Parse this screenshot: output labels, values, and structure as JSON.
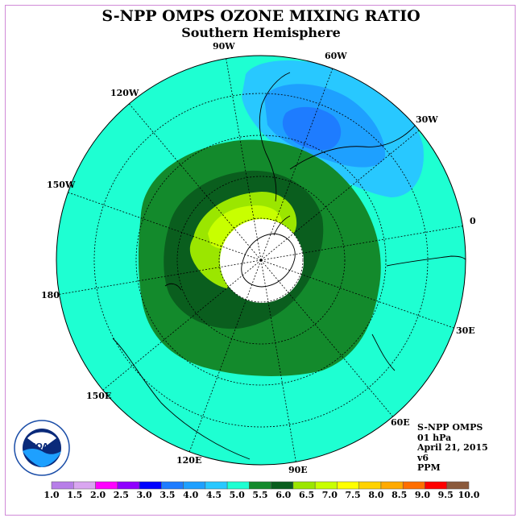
{
  "title": "S-NPP OMPS OZONE MIXING RATIO",
  "subtitle": "Southern Hemisphere",
  "longitude_labels": [
    "90W",
    "60W",
    "30W",
    "0",
    "30E",
    "60E",
    "90E",
    "120E",
    "150E",
    "180",
    "150W",
    "120W"
  ],
  "info": {
    "instrument": "S-NPP OMPS",
    "level": "01 hPa",
    "date": "April 21, 2015",
    "version": "v6",
    "units": "PPM"
  },
  "logo_text": "NOAA",
  "colorbar": {
    "labels": [
      "1.0",
      "1.5",
      "2.0",
      "2.5",
      "3.0",
      "3.5",
      "4.0",
      "4.5",
      "5.0",
      "5.5",
      "6.0",
      "6.5",
      "7.0",
      "7.5",
      "8.0",
      "8.5",
      "9.0",
      "9.5",
      "10.0"
    ],
    "colors": [
      "#b77ee8",
      "#d9a6f0",
      "#ff00ff",
      "#8f00ff",
      "#0000ff",
      "#1e7cff",
      "#1ea0ff",
      "#28c8ff",
      "#1effd2",
      "#138a2c",
      "#0a5e1e",
      "#9be600",
      "#c8ff00",
      "#ffff00",
      "#ffd200",
      "#ffaa00",
      "#ff6e00",
      "#ff0000",
      "#8b5a3c"
    ]
  },
  "colors": {
    "background_field": "#1effd2",
    "mid_green": "#138a2c",
    "dark_green": "#0a5e1e",
    "light_green": "#9be600",
    "yellow_green": "#c8ff00",
    "blue_light": "#28c8ff",
    "blue_mid": "#1ea0ff",
    "blue_dark": "#1e7cff"
  }
}
